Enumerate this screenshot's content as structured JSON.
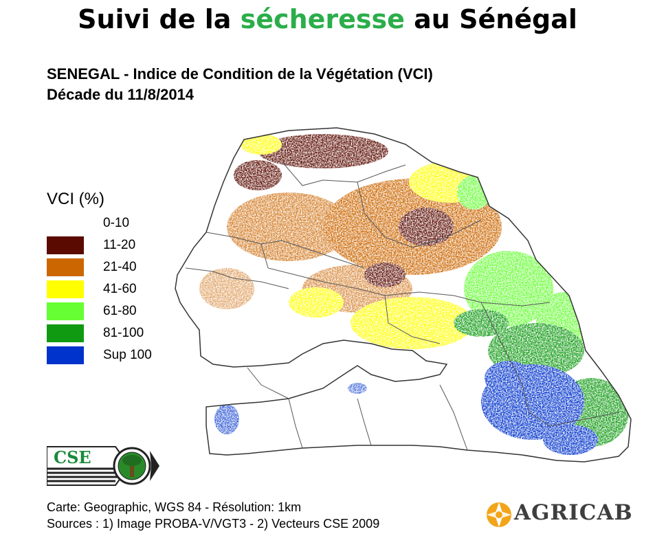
{
  "headline": {
    "before": "Suivi de la ",
    "highlight": "sécheresse",
    "after": " au Sénégal"
  },
  "map_title": {
    "line1": "SENEGAL -  Indice de Condition de la Végétation (VCI)",
    "line2": "Décade du 11/8/2014"
  },
  "legend": {
    "title": "VCI (%)",
    "items": [
      {
        "label": "0-10",
        "color": "#ffffff"
      },
      {
        "label": "11-20",
        "color": "#5a0a00"
      },
      {
        "label": "21-40",
        "color": "#cc6600"
      },
      {
        "label": "41-60",
        "color": "#ffff00"
      },
      {
        "label": "61-80",
        "color": "#66ff33"
      },
      {
        "label": "81-100",
        "color": "#0f9a12"
      },
      {
        "label": "Sup 100",
        "color": "#0033cc"
      }
    ]
  },
  "footer": {
    "line1": "Carte: Geographic, WGS 84  - Résolution: 1km",
    "line2": "Sources  : 1) Image PROBA-V/VGT3 - 2) Vecteurs  CSE 2009"
  },
  "logos": {
    "cse": "CSE",
    "agricab": "AGRICAB"
  },
  "colors": {
    "headline_highlight": "#2bae4a"
  }
}
